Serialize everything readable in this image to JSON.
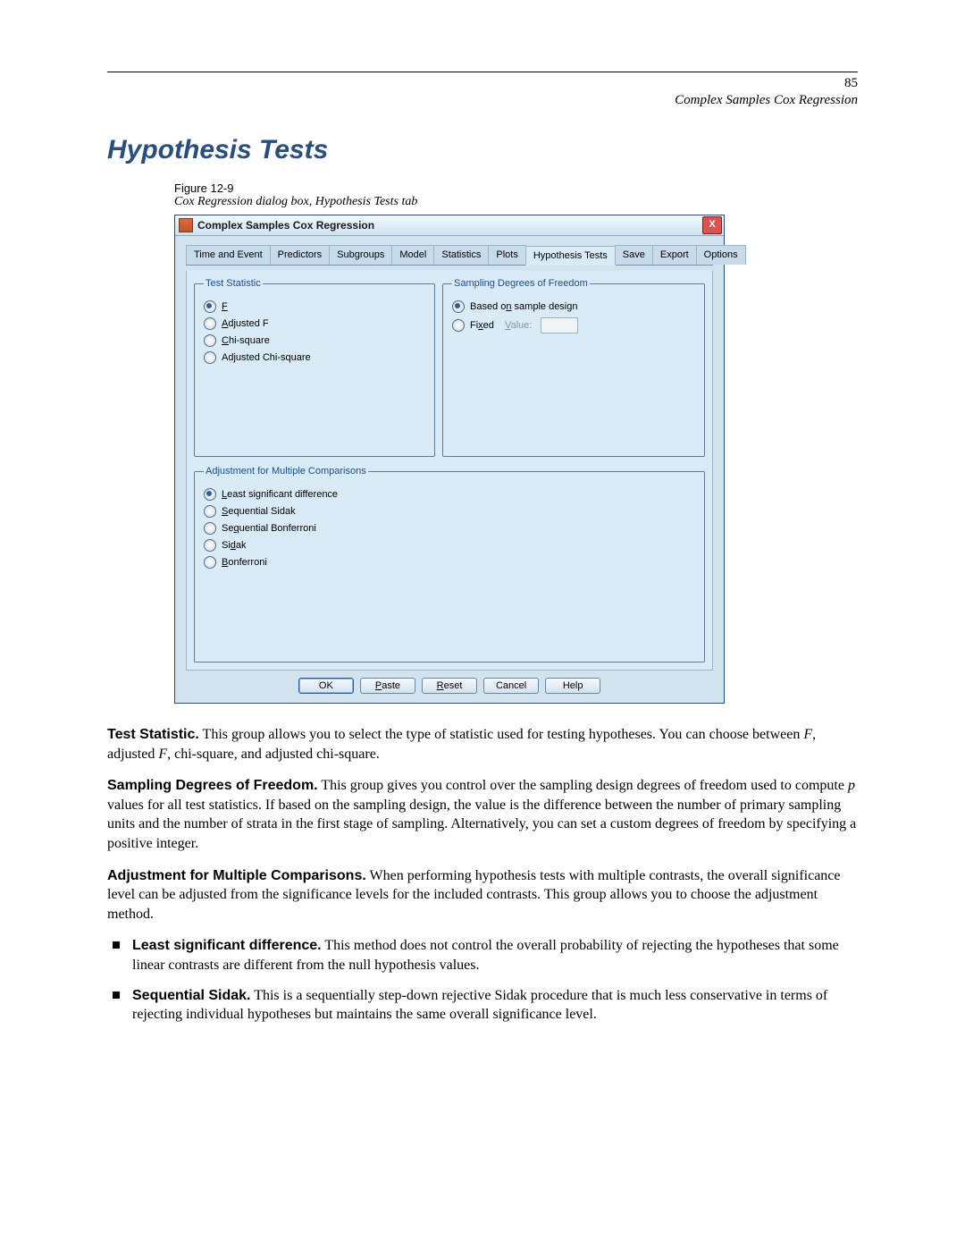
{
  "page": {
    "number": "85",
    "running_head": "Complex Samples Cox Regression",
    "section_title": "Hypothesis Tests"
  },
  "figure": {
    "label": "Figure 12-9",
    "caption": "Cox Regression dialog box, Hypothesis Tests tab"
  },
  "dialog": {
    "title": "Complex Samples Cox Regression",
    "close_glyph": "X",
    "tabs": {
      "time_event": "Time and Event",
      "predictors": "Predictors",
      "subgroups": "Subgroups",
      "model": "Model",
      "statistics": "Statistics",
      "plots": "Plots",
      "hypothesis": "Hypothesis Tests",
      "save": "Save",
      "export": "Export",
      "options": "Options"
    },
    "groups": {
      "test_statistic": {
        "legend": "Test Statistic",
        "f": "F",
        "adjusted_f": "Adjusted F",
        "chi_square": "Chi-square",
        "adjusted_chi": "Adjusted Chi-square"
      },
      "sampling_dof": {
        "legend": "Sampling Degrees of Freedom",
        "based_on": "Based on sample design",
        "fixed": "Fixed",
        "value_label": "Value:"
      },
      "adjustment": {
        "legend": "Adjustment for Multiple Comparisons",
        "lsd": "Least significant difference",
        "seq_sidak": "Sequential Sidak",
        "seq_bonf": "Sequential Bonferroni",
        "sidak": "Sidak",
        "bonf": "Bonferroni"
      }
    },
    "buttons": {
      "ok": "OK",
      "paste": "Paste",
      "reset": "Reset",
      "cancel": "Cancel",
      "help": "Help"
    }
  },
  "body": {
    "p1_lead": "Test Statistic.",
    "p1_text": " This group allows you to select the type of statistic used for testing hypotheses. You can choose between F, adjusted F, chi-square, and adjusted chi-square.",
    "p2_lead": "Sampling Degrees of Freedom.",
    "p2_text": " This group gives you control over the sampling design degrees of freedom used to compute p values for all test statistics. If based on the sampling design, the value is the difference between the number of primary sampling units and the number of strata in the first stage of sampling. Alternatively, you can set a custom degrees of freedom by specifying a positive integer.",
    "p3_lead": "Adjustment for Multiple Comparisons.",
    "p3_text": " When performing hypothesis tests with multiple contrasts, the overall significance level can be adjusted from the significance levels for the included contrasts. This group allows you to choose the adjustment method.",
    "li1_lead": "Least significant difference.",
    "li1_text": " This method does not control the overall probability of rejecting the hypotheses that some linear contrasts are different from the null hypothesis values.",
    "li2_lead": "Sequential Sidak.",
    "li2_text": " This is a sequentially step-down rejective Sidak procedure that is much less conservative in terms of rejecting individual hypotheses but maintains the same overall significance level."
  }
}
